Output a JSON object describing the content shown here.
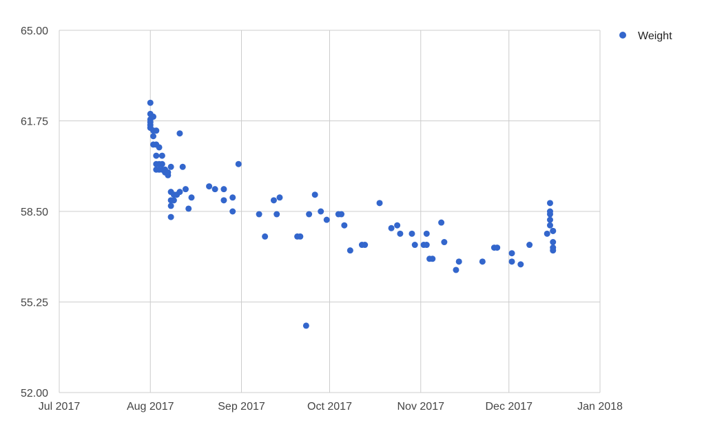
{
  "chart_data": {
    "type": "scatter",
    "title": "",
    "xlabel": "",
    "ylabel": "",
    "xlim": [
      "2017-07-01",
      "2018-01-01"
    ],
    "ylim": [
      52.0,
      65.0
    ],
    "x_ticks": [
      "2017-07-01",
      "2017-08-01",
      "2017-09-01",
      "2017-10-01",
      "2017-11-01",
      "2017-12-01",
      "2018-01-01"
    ],
    "x_tick_labels": [
      "Jul 2017",
      "Aug 2017",
      "Sep 2017",
      "Oct 2017",
      "Nov 2017",
      "Dec 2017",
      "Jan 2018"
    ],
    "y_ticks": [
      52.0,
      55.25,
      58.5,
      61.75,
      65.0
    ],
    "y_tick_labels": [
      "52.00",
      "55.25",
      "58.50",
      "61.75",
      "65.00"
    ],
    "grid": true,
    "legend_position": "top-right",
    "series": [
      {
        "name": "Weight",
        "color": "#3366cc",
        "points": [
          [
            "2017-08-01",
            62.4
          ],
          [
            "2017-08-01",
            62.0
          ],
          [
            "2017-08-01",
            61.8
          ],
          [
            "2017-08-01",
            61.7
          ],
          [
            "2017-08-01",
            61.6
          ],
          [
            "2017-08-01",
            61.5
          ],
          [
            "2017-08-02",
            61.9
          ],
          [
            "2017-08-02",
            61.4
          ],
          [
            "2017-08-02",
            61.2
          ],
          [
            "2017-08-02",
            60.9
          ],
          [
            "2017-08-03",
            60.9
          ],
          [
            "2017-08-03",
            61.4
          ],
          [
            "2017-08-03",
            60.5
          ],
          [
            "2017-08-03",
            60.2
          ],
          [
            "2017-08-03",
            60.0
          ],
          [
            "2017-08-04",
            60.8
          ],
          [
            "2017-08-04",
            60.2
          ],
          [
            "2017-08-04",
            60.0
          ],
          [
            "2017-08-05",
            60.5
          ],
          [
            "2017-08-05",
            60.2
          ],
          [
            "2017-08-05",
            60.0
          ],
          [
            "2017-08-06",
            59.9
          ],
          [
            "2017-08-06",
            60.0
          ],
          [
            "2017-08-07",
            59.8
          ],
          [
            "2017-08-07",
            59.9
          ],
          [
            "2017-08-08",
            59.2
          ],
          [
            "2017-08-08",
            58.9
          ],
          [
            "2017-08-08",
            58.3
          ],
          [
            "2017-08-08",
            58.7
          ],
          [
            "2017-08-08",
            60.1
          ],
          [
            "2017-08-09",
            59.1
          ],
          [
            "2017-08-09",
            58.9
          ],
          [
            "2017-08-10",
            59.1
          ],
          [
            "2017-08-11",
            59.2
          ],
          [
            "2017-08-11",
            61.3
          ],
          [
            "2017-08-12",
            60.1
          ],
          [
            "2017-08-13",
            59.3
          ],
          [
            "2017-08-14",
            58.6
          ],
          [
            "2017-08-15",
            59.0
          ],
          [
            "2017-08-21",
            59.4
          ],
          [
            "2017-08-23",
            59.3
          ],
          [
            "2017-08-26",
            59.3
          ],
          [
            "2017-08-26",
            58.9
          ],
          [
            "2017-08-29",
            59.0
          ],
          [
            "2017-08-29",
            58.5
          ],
          [
            "2017-08-31",
            60.2
          ],
          [
            "2017-09-07",
            58.4
          ],
          [
            "2017-09-09",
            57.6
          ],
          [
            "2017-09-12",
            58.9
          ],
          [
            "2017-09-13",
            58.4
          ],
          [
            "2017-09-14",
            59.0
          ],
          [
            "2017-09-20",
            57.6
          ],
          [
            "2017-09-21",
            57.6
          ],
          [
            "2017-09-23",
            54.4
          ],
          [
            "2017-09-24",
            58.4
          ],
          [
            "2017-09-26",
            59.1
          ],
          [
            "2017-09-28",
            58.5
          ],
          [
            "2017-09-30",
            58.2
          ],
          [
            "2017-10-04",
            58.4
          ],
          [
            "2017-10-05",
            58.4
          ],
          [
            "2017-10-06",
            58.0
          ],
          [
            "2017-10-08",
            57.1
          ],
          [
            "2017-10-12",
            57.3
          ],
          [
            "2017-10-13",
            57.3
          ],
          [
            "2017-10-18",
            58.8
          ],
          [
            "2017-10-22",
            57.9
          ],
          [
            "2017-10-24",
            58.0
          ],
          [
            "2017-10-25",
            57.7
          ],
          [
            "2017-10-29",
            57.7
          ],
          [
            "2017-10-30",
            57.3
          ],
          [
            "2017-11-02",
            57.3
          ],
          [
            "2017-11-03",
            57.3
          ],
          [
            "2017-11-03",
            57.7
          ],
          [
            "2017-11-04",
            56.8
          ],
          [
            "2017-11-05",
            56.8
          ],
          [
            "2017-11-08",
            58.1
          ],
          [
            "2017-11-09",
            57.4
          ],
          [
            "2017-11-13",
            56.4
          ],
          [
            "2017-11-14",
            56.7
          ],
          [
            "2017-11-22",
            56.7
          ],
          [
            "2017-11-26",
            57.2
          ],
          [
            "2017-11-27",
            57.2
          ],
          [
            "2017-12-02",
            56.7
          ],
          [
            "2017-12-02",
            57.0
          ],
          [
            "2017-12-05",
            56.6
          ],
          [
            "2017-12-08",
            57.3
          ],
          [
            "2017-12-14",
            57.7
          ],
          [
            "2017-12-15",
            58.8
          ],
          [
            "2017-12-15",
            58.5
          ],
          [
            "2017-12-15",
            58.4
          ],
          [
            "2017-12-15",
            58.2
          ],
          [
            "2017-12-15",
            58.0
          ],
          [
            "2017-12-16",
            57.8
          ],
          [
            "2017-12-16",
            57.8
          ],
          [
            "2017-12-16",
            57.4
          ],
          [
            "2017-12-16",
            57.2
          ],
          [
            "2017-12-16",
            57.1
          ]
        ]
      }
    ]
  }
}
